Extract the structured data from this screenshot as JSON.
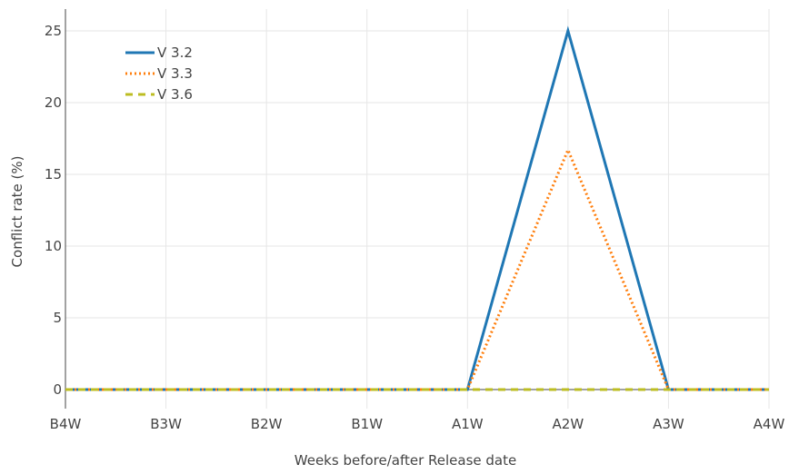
{
  "chart_data": {
    "type": "line",
    "title": "",
    "xlabel": "Weeks before/after Release date",
    "ylabel": "Conflict rate (%)",
    "categories": [
      "B4W",
      "B3W",
      "B2W",
      "B1W",
      "A1W",
      "A2W",
      "A3W",
      "A4W"
    ],
    "yticks": [
      0,
      5,
      10,
      15,
      20,
      25
    ],
    "ylim": [
      0,
      26
    ],
    "grid": true,
    "legend_position": "top-left",
    "series": [
      {
        "name": "V 3.2",
        "color": "#1f77b4",
        "dash": "solid",
        "values": [
          0,
          0,
          0,
          0,
          0,
          25,
          0,
          0
        ]
      },
      {
        "name": "V 3.3",
        "color": "#ff7f0e",
        "dash": "dot",
        "values": [
          0,
          0,
          0,
          0,
          0,
          16.7,
          0,
          0
        ]
      },
      {
        "name": "V 3.6",
        "color": "#bcbd22",
        "dash": "dash",
        "values": [
          0,
          0,
          0,
          0,
          0,
          0,
          0,
          0
        ]
      }
    ]
  }
}
